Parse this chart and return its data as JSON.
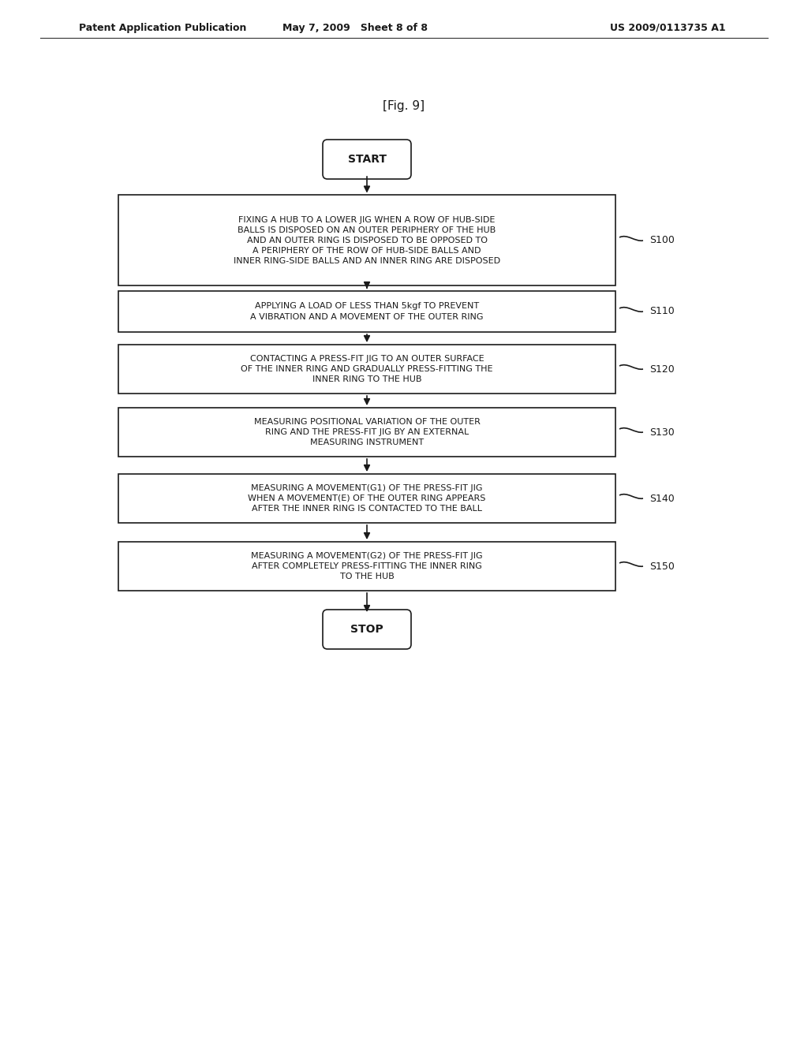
{
  "background_color": "#ffffff",
  "header_left": "Patent Application Publication",
  "header_center": "May 7, 2009   Sheet 8 of 8",
  "header_right": "US 2009/0113735 A1",
  "fig_label": "[Fig. 9]",
  "start_label": "START",
  "stop_label": "STOP",
  "steps": [
    {
      "id": "S100",
      "label": "FIXING A HUB TO A LOWER JIG WHEN A ROW OF HUB-SIDE\nBALLS IS DISPOSED ON AN OUTER PERIPHERY OF THE HUB\nAND AN OUTER RING IS DISPOSED TO BE OPPOSED TO\nA PERIPHERY OF THE ROW OF HUB-SIDE BALLS AND\nINNER RING-SIDE BALLS AND AN INNER RING ARE DISPOSED",
      "step_num": "S100"
    },
    {
      "id": "S110",
      "label": "APPLYING A LOAD OF LESS THAN 5kgf TO PREVENT\nA VIBRATION AND A MOVEMENT OF THE OUTER RING",
      "step_num": "S110"
    },
    {
      "id": "S120",
      "label": "CONTACTING A PRESS-FIT JIG TO AN OUTER SURFACE\nOF THE INNER RING AND GRADUALLY PRESS-FITTING THE\nINNER RING TO THE HUB",
      "step_num": "S120"
    },
    {
      "id": "S130",
      "label": "MEASURING POSITIONAL VARIATION OF THE OUTER\nRING AND THE PRESS-FIT JIG BY AN EXTERNAL\nMEASURING INSTRUMENT",
      "step_num": "S130"
    },
    {
      "id": "S140",
      "label": "MEASURING A MOVEMENT(G1) OF THE PRESS-FIT JIG\nWHEN A MOVEMENT(E) OF THE OUTER RING APPEARS\nAFTER THE INNER RING IS CONTACTED TO THE BALL",
      "step_num": "S140"
    },
    {
      "id": "S150",
      "label": "MEASURING A MOVEMENT(G2) OF THE PRESS-FIT JIG\nAFTER COMPLETELY PRESS-FITTING THE INNER RING\nTO THE HUB",
      "step_num": "S150"
    }
  ]
}
